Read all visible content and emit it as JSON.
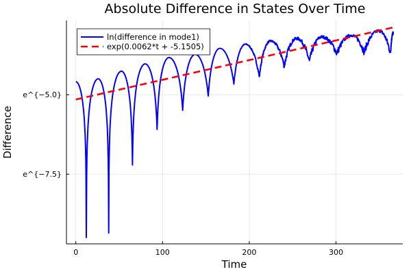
{
  "chart_data": {
    "type": "line",
    "title": "Absolute Difference in States Over Time",
    "xlabel": "Time",
    "ylabel": "Difference",
    "xlim": [
      -10,
      377
    ],
    "ylim": [
      -9.65,
      -2.65
    ],
    "x_ticks": [
      0,
      100,
      200,
      300
    ],
    "x_tick_labels": [
      "0",
      "100",
      "200",
      "300"
    ],
    "y_ticks": [
      -5.0,
      -7.5
    ],
    "y_tick_labels": [
      "e^{−5.0}",
      "e^{−7.5}"
    ],
    "grid": true,
    "legend_position": "top-left",
    "series": [
      {
        "name": "ln(difference in mode1)",
        "color": "#0000ff",
        "style": "solid",
        "extrema_t": [
          0,
          12.1,
          25.8,
          37.9,
          52.6,
          65.3,
          80,
          93.7,
          107.4,
          123.2,
          137.7,
          152.7,
          166,
          182.2,
          195.6,
          211.6,
          224.6,
          240.4,
          254.9,
          269.3,
          283.8,
          301,
          318,
          332.5,
          349.6,
          362.8,
          366
        ],
        "extrema_v": [
          -4.59,
          -9.49,
          -4.5,
          -9.35,
          -4.26,
          -7.21,
          -4.03,
          -6.09,
          -3.83,
          -5.49,
          -3.73,
          -5.04,
          -3.54,
          -4.66,
          -3.41,
          -4.45,
          -3.31,
          -4.1,
          -3.23,
          -3.96,
          -3.18,
          -3.71,
          -3.13,
          -3.67,
          -2.99,
          -3.71,
          -3.06
        ]
      },
      {
        "name": "exp(0.0062*t + -5.1505)",
        "color": "#ff0000",
        "style": "dashed",
        "slope": 0.0062,
        "intercept": -5.1505,
        "t_range": [
          0,
          366
        ]
      }
    ]
  }
}
